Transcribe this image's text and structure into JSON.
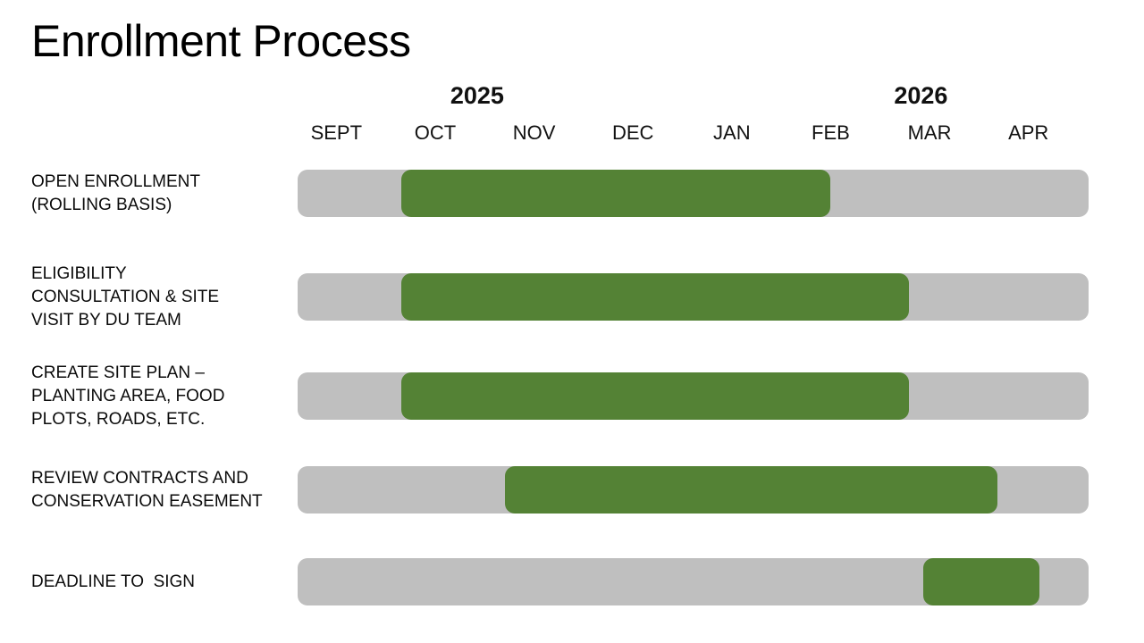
{
  "title": "Enrollment Process",
  "timeline": {
    "years": [
      {
        "label": "2025",
        "position_pct": 22.7
      },
      {
        "label": "2026",
        "position_pct": 78.8
      }
    ],
    "months": [
      "SEPT",
      "OCT",
      "NOV",
      "DEC",
      "JAN",
      "FEB",
      "MAR",
      "APR"
    ]
  },
  "colors": {
    "background": "#ffffff",
    "text": "#000000",
    "bar_track": "#bfbfbf",
    "bar_active": "#548235"
  },
  "chart_data": {
    "type": "bar",
    "variant": "gantt-timeline",
    "title": "Enrollment Process",
    "orientation": "horizontal",
    "x_axis": {
      "unit": "months",
      "domain": [
        0,
        8
      ],
      "tick_labels": [
        "SEPT",
        "OCT",
        "NOV",
        "DEC",
        "JAN",
        "FEB",
        "MAR",
        "APR"
      ],
      "year_labels": [
        {
          "label": "2025",
          "spans_months": "SEPT-DEC"
        },
        {
          "label": "2026",
          "spans_months": "JAN-APR"
        }
      ],
      "note": "0 = start of SEPT 2025, 8 = end of APR 2026; grid off"
    },
    "legend": "none",
    "tasks": [
      {
        "label": "OPEN ENROLLMENT (ROLLING BASIS)",
        "label_lines": [
          "OPEN ENROLLMENT",
          "(ROLLING BASIS)"
        ],
        "start": 1.05,
        "end": 5.39,
        "approx_period": "early OCT 2025 to mid FEB 2026"
      },
      {
        "label": "ELIGIBILITY CONSULTATION & SITE VISIT BY DU TEAM",
        "label_lines": [
          "ELIGIBILITY",
          "CONSULTATION & SITE",
          "VISIT BY DU TEAM"
        ],
        "start": 1.05,
        "end": 6.18,
        "approx_period": "early OCT 2025 to end of FEB 2026"
      },
      {
        "label": "CREATE SITE PLAN – PLANTING AREA, FOOD PLOTS, ROADS, ETC.",
        "label_lines": [
          "CREATE SITE PLAN –",
          "PLANTING AREA, FOOD",
          "PLOTS, ROADS, ETC."
        ],
        "start": 1.05,
        "end": 6.18,
        "approx_period": "early OCT 2025 to end of FEB 2026"
      },
      {
        "label": "REVIEW CONTRACTS AND CONSERVATION EASEMENT",
        "label_lines": [
          "REVIEW CONTRACTS AND",
          "CONSERVATION EASEMENT"
        ],
        "start": 2.1,
        "end": 7.08,
        "approx_period": "early NOV 2025 to end of MAR 2026"
      },
      {
        "label": "DEADLINE TO  SIGN",
        "label_lines": [
          "DEADLINE TO  SIGN"
        ],
        "start": 6.33,
        "end": 7.5,
        "approx_period": "mid MAR 2026 to mid APR 2026"
      }
    ]
  }
}
